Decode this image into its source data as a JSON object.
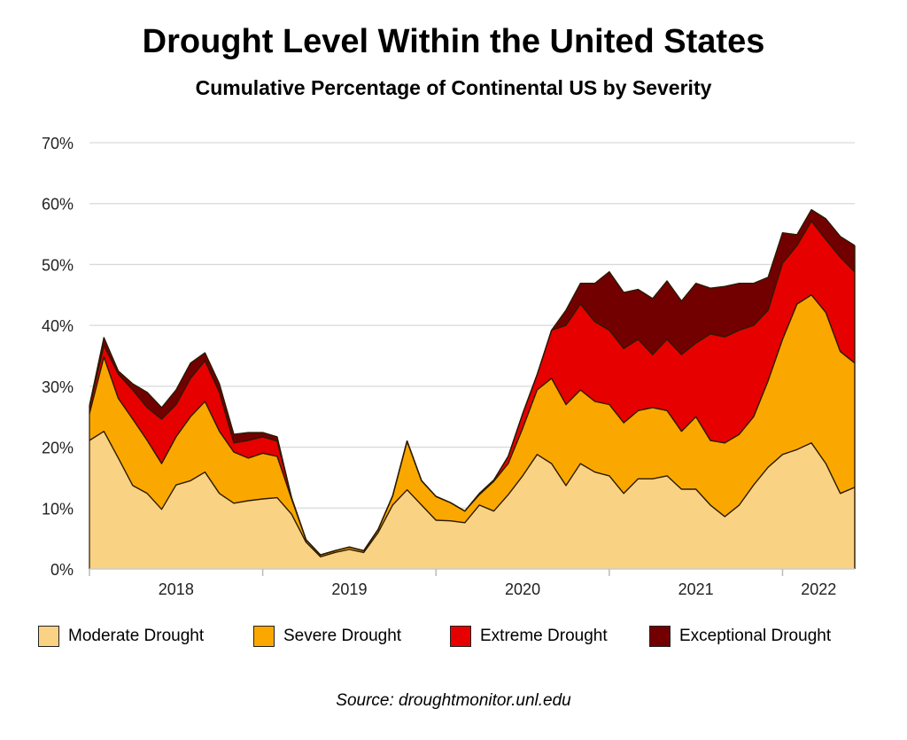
{
  "chart_data": {
    "type": "area",
    "stacking": "cumulative",
    "title": "Drought Level Within the United States",
    "subtitle": "Cumulative Percentage of Continental US by Severity",
    "source": "Source: droughtmonitor.unl.edu",
    "xlabel": "",
    "ylabel": "",
    "ylim": [
      0,
      70
    ],
    "xlim": [
      "2018-01",
      "2022-06"
    ],
    "y_ticks": [
      "0%",
      "10%",
      "20%",
      "30%",
      "40%",
      "50%",
      "60%",
      "70%"
    ],
    "x_ticks": [
      "2018",
      "2019",
      "2020",
      "2021",
      "2022"
    ],
    "grid": true,
    "legend_position": "bottom",
    "x": [
      "2018-01",
      "2018-02",
      "2018-03",
      "2018-04",
      "2018-05",
      "2018-06",
      "2018-07",
      "2018-08",
      "2018-09",
      "2018-10",
      "2018-11",
      "2018-12",
      "2019-01",
      "2019-02",
      "2019-03",
      "2019-04",
      "2019-05",
      "2019-06",
      "2019-07",
      "2019-08",
      "2019-09",
      "2019-10",
      "2019-11",
      "2019-12",
      "2020-01",
      "2020-02",
      "2020-03",
      "2020-04",
      "2020-05",
      "2020-06",
      "2020-07",
      "2020-08",
      "2020-09",
      "2020-10",
      "2020-11",
      "2020-12",
      "2021-01",
      "2021-02",
      "2021-03",
      "2021-04",
      "2021-05",
      "2021-06",
      "2021-07",
      "2021-08",
      "2021-09",
      "2021-10",
      "2021-11",
      "2021-12",
      "2022-01",
      "2022-02",
      "2022-03",
      "2022-04",
      "2022-05",
      "2022-06"
    ],
    "series": [
      {
        "name": "Moderate Drought",
        "color": "#FAD283",
        "values": [
          21.1,
          22.6,
          18.2,
          13.7,
          12.4,
          9.8,
          13.8,
          14.5,
          15.9,
          12.4,
          10.8,
          11.2,
          11.5,
          11.7,
          9.0,
          4.4,
          2.0,
          2.7,
          3.2,
          2.7,
          6.0,
          10.5,
          13.0,
          10.5,
          8.0,
          7.9,
          7.6,
          10.5,
          9.5,
          12.2,
          15.3,
          18.8,
          17.3,
          13.7,
          17.3,
          15.9,
          15.3,
          12.4,
          14.8,
          14.8,
          15.3,
          13.1,
          13.1,
          10.5,
          8.6,
          10.5,
          13.8,
          16.7,
          18.8,
          19.6,
          20.7,
          17.3,
          12.4,
          13.4
        ]
      },
      {
        "name": "Severe Drought",
        "color": "#FAA800",
        "values": [
          25.5,
          34.8,
          28.0,
          24.6,
          21.1,
          17.3,
          21.7,
          25.0,
          27.5,
          22.6,
          19.2,
          18.2,
          19.0,
          18.5,
          11.5,
          4.8,
          2.3,
          3.0,
          3.6,
          3.0,
          6.5,
          12.0,
          21.0,
          14.5,
          11.9,
          10.9,
          9.5,
          12.2,
          14.4,
          17.3,
          23.1,
          29.4,
          31.3,
          27.0,
          29.4,
          27.5,
          27.0,
          24.0,
          26.0,
          26.5,
          26.0,
          22.6,
          25.0,
          21.1,
          20.7,
          22.1,
          25.0,
          30.9,
          37.7,
          43.5,
          45.0,
          42.1,
          35.7,
          33.8
        ]
      },
      {
        "name": "Extreme Drought",
        "color": "#E60000",
        "values": [
          26.5,
          36.7,
          32.0,
          29.4,
          26.5,
          24.6,
          27.0,
          31.3,
          34.2,
          29.0,
          20.7,
          21.1,
          21.7,
          21.0,
          11.7,
          4.8,
          2.3,
          3.0,
          3.6,
          3.0,
          6.5,
          12.0,
          21.0,
          14.5,
          11.9,
          10.9,
          9.5,
          12.4,
          14.6,
          18.5,
          25.5,
          31.9,
          39.2,
          40.0,
          43.5,
          40.6,
          39.2,
          36.2,
          37.7,
          35.2,
          37.7,
          35.2,
          37.1,
          38.6,
          38.1,
          39.2,
          40.0,
          42.5,
          50.2,
          53.1,
          57.1,
          54.1,
          51.2,
          48.8
        ]
      },
      {
        "name": "Exceptional Drought",
        "color": "#730000",
        "values": [
          26.8,
          38.0,
          32.5,
          30.4,
          29.0,
          26.5,
          29.4,
          33.8,
          35.5,
          30.4,
          22.1,
          22.4,
          22.4,
          21.7,
          11.7,
          4.8,
          2.3,
          3.0,
          3.6,
          3.0,
          6.5,
          12.0,
          21.0,
          14.5,
          11.9,
          10.9,
          9.5,
          12.4,
          14.6,
          18.5,
          25.5,
          31.9,
          39.2,
          42.5,
          46.9,
          46.9,
          48.8,
          45.4,
          45.9,
          44.4,
          47.3,
          44.0,
          46.9,
          46.1,
          46.4,
          46.9,
          46.9,
          47.9,
          55.2,
          54.9,
          59.0,
          57.5,
          54.6,
          53.1
        ]
      }
    ]
  }
}
